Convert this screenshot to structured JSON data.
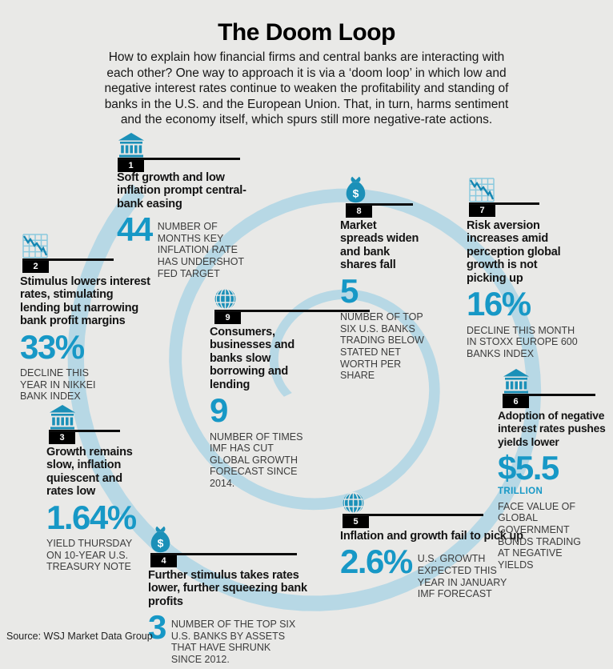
{
  "title": "The Doom Loop",
  "intro": "How to explain how financial firms and central banks are interacting with\neach other? One way to approach it is via a ‘doom loop’ in which low and\nnegative interest rates continue to weaken the profitability and standing of\nbanks in the U.S. and the European Union. That, in turn, harms sentiment\nand the economy itself, which spurs still more negative-rate actions.",
  "source": "Source: WSJ Market Data Group",
  "colors": {
    "background": "#e9e9e7",
    "spiral": "#b7d8e5",
    "stat_teal": "#1798c6",
    "icon_teal": "#1b90b8",
    "badge_black": "#000000"
  },
  "items": [
    {
      "number": "1",
      "icon": "bank-icon",
      "headline": "Soft growth and low\ninflation prompt central-\nbank easing",
      "stat": "44",
      "caption": "NUMBER OF\nMONTHS KEY\nINFLATION RATE\nHAS UNDERSHOT\nFED TARGET",
      "caption_position": "right"
    },
    {
      "number": "2",
      "icon": "declining-chart-icon",
      "headline": "Stimulus lowers interest\nrates, stimulating\nlending but narrowing\nbank profit margins",
      "stat": "33%",
      "caption": "DECLINE THIS\nYEAR IN NIKKEI\nBANK INDEX",
      "caption_position": "below"
    },
    {
      "number": "3",
      "icon": "bank-icon",
      "headline": "Growth remains\nslow, inflation\nquiescent and\nrates low",
      "stat": "1.64%",
      "caption": "YIELD THURSDAY\nON 10-YEAR U.S.\nTREASURY NOTE",
      "caption_position": "below"
    },
    {
      "number": "4",
      "icon": "money-bag-icon",
      "headline": "Further stimulus takes rates\nlower, further squeezing bank\nprofits",
      "stat": "3",
      "caption": "NUMBER OF THE TOP SIX\nU.S. BANKS BY ASSETS\nTHAT HAVE SHRUNK\nSINCE 2012.",
      "caption_position": "right"
    },
    {
      "number": "5",
      "icon": "globe-icon",
      "headline": "Inflation and growth fail to pick up",
      "stat": "2.6%",
      "caption": "U.S. GROWTH\nEXPECTED THIS\nYEAR IN JANUARY\nIMF FORECAST",
      "caption_position": "right"
    },
    {
      "number": "6",
      "icon": "bank-icon",
      "headline": "Adoption of negative\ninterest rates pushes\nyields lower",
      "stat": "$5.5",
      "stat_sub": "TRILLION",
      "caption": "FACE VALUE OF\nGLOBAL\nGOVERNMENT\nBONDS TRADING\nAT NEGATIVE\nYIELDS",
      "caption_position": "below"
    },
    {
      "number": "7",
      "icon": "declining-chart-icon",
      "headline": "Risk aversion\nincreases amid\nperception global\ngrowth is not\npicking up",
      "stat": "16%",
      "caption": "DECLINE THIS MONTH\nIN STOXX EUROPE 600\nBANKS INDEX",
      "caption_position": "below"
    },
    {
      "number": "8",
      "icon": "money-bag-icon",
      "headline": "Market\nspreads widen\nand bank\nshares fall",
      "stat": "5",
      "caption": "NUMBER OF TOP\nSIX U.S. BANKS\nTRADING BELOW\nSTATED NET\nWORTH PER\nSHARE",
      "caption_position": "below"
    },
    {
      "number": "9",
      "icon": "globe-icon",
      "headline": "Consumers,\nbusinesses and\nbanks slow\nborrowing and\nlending",
      "stat": "9",
      "caption": "NUMBER OF TIMES\nIMF HAS CUT\nGLOBAL GROWTH\nFORECAST SINCE\n2014.",
      "caption_position": "below"
    }
  ]
}
